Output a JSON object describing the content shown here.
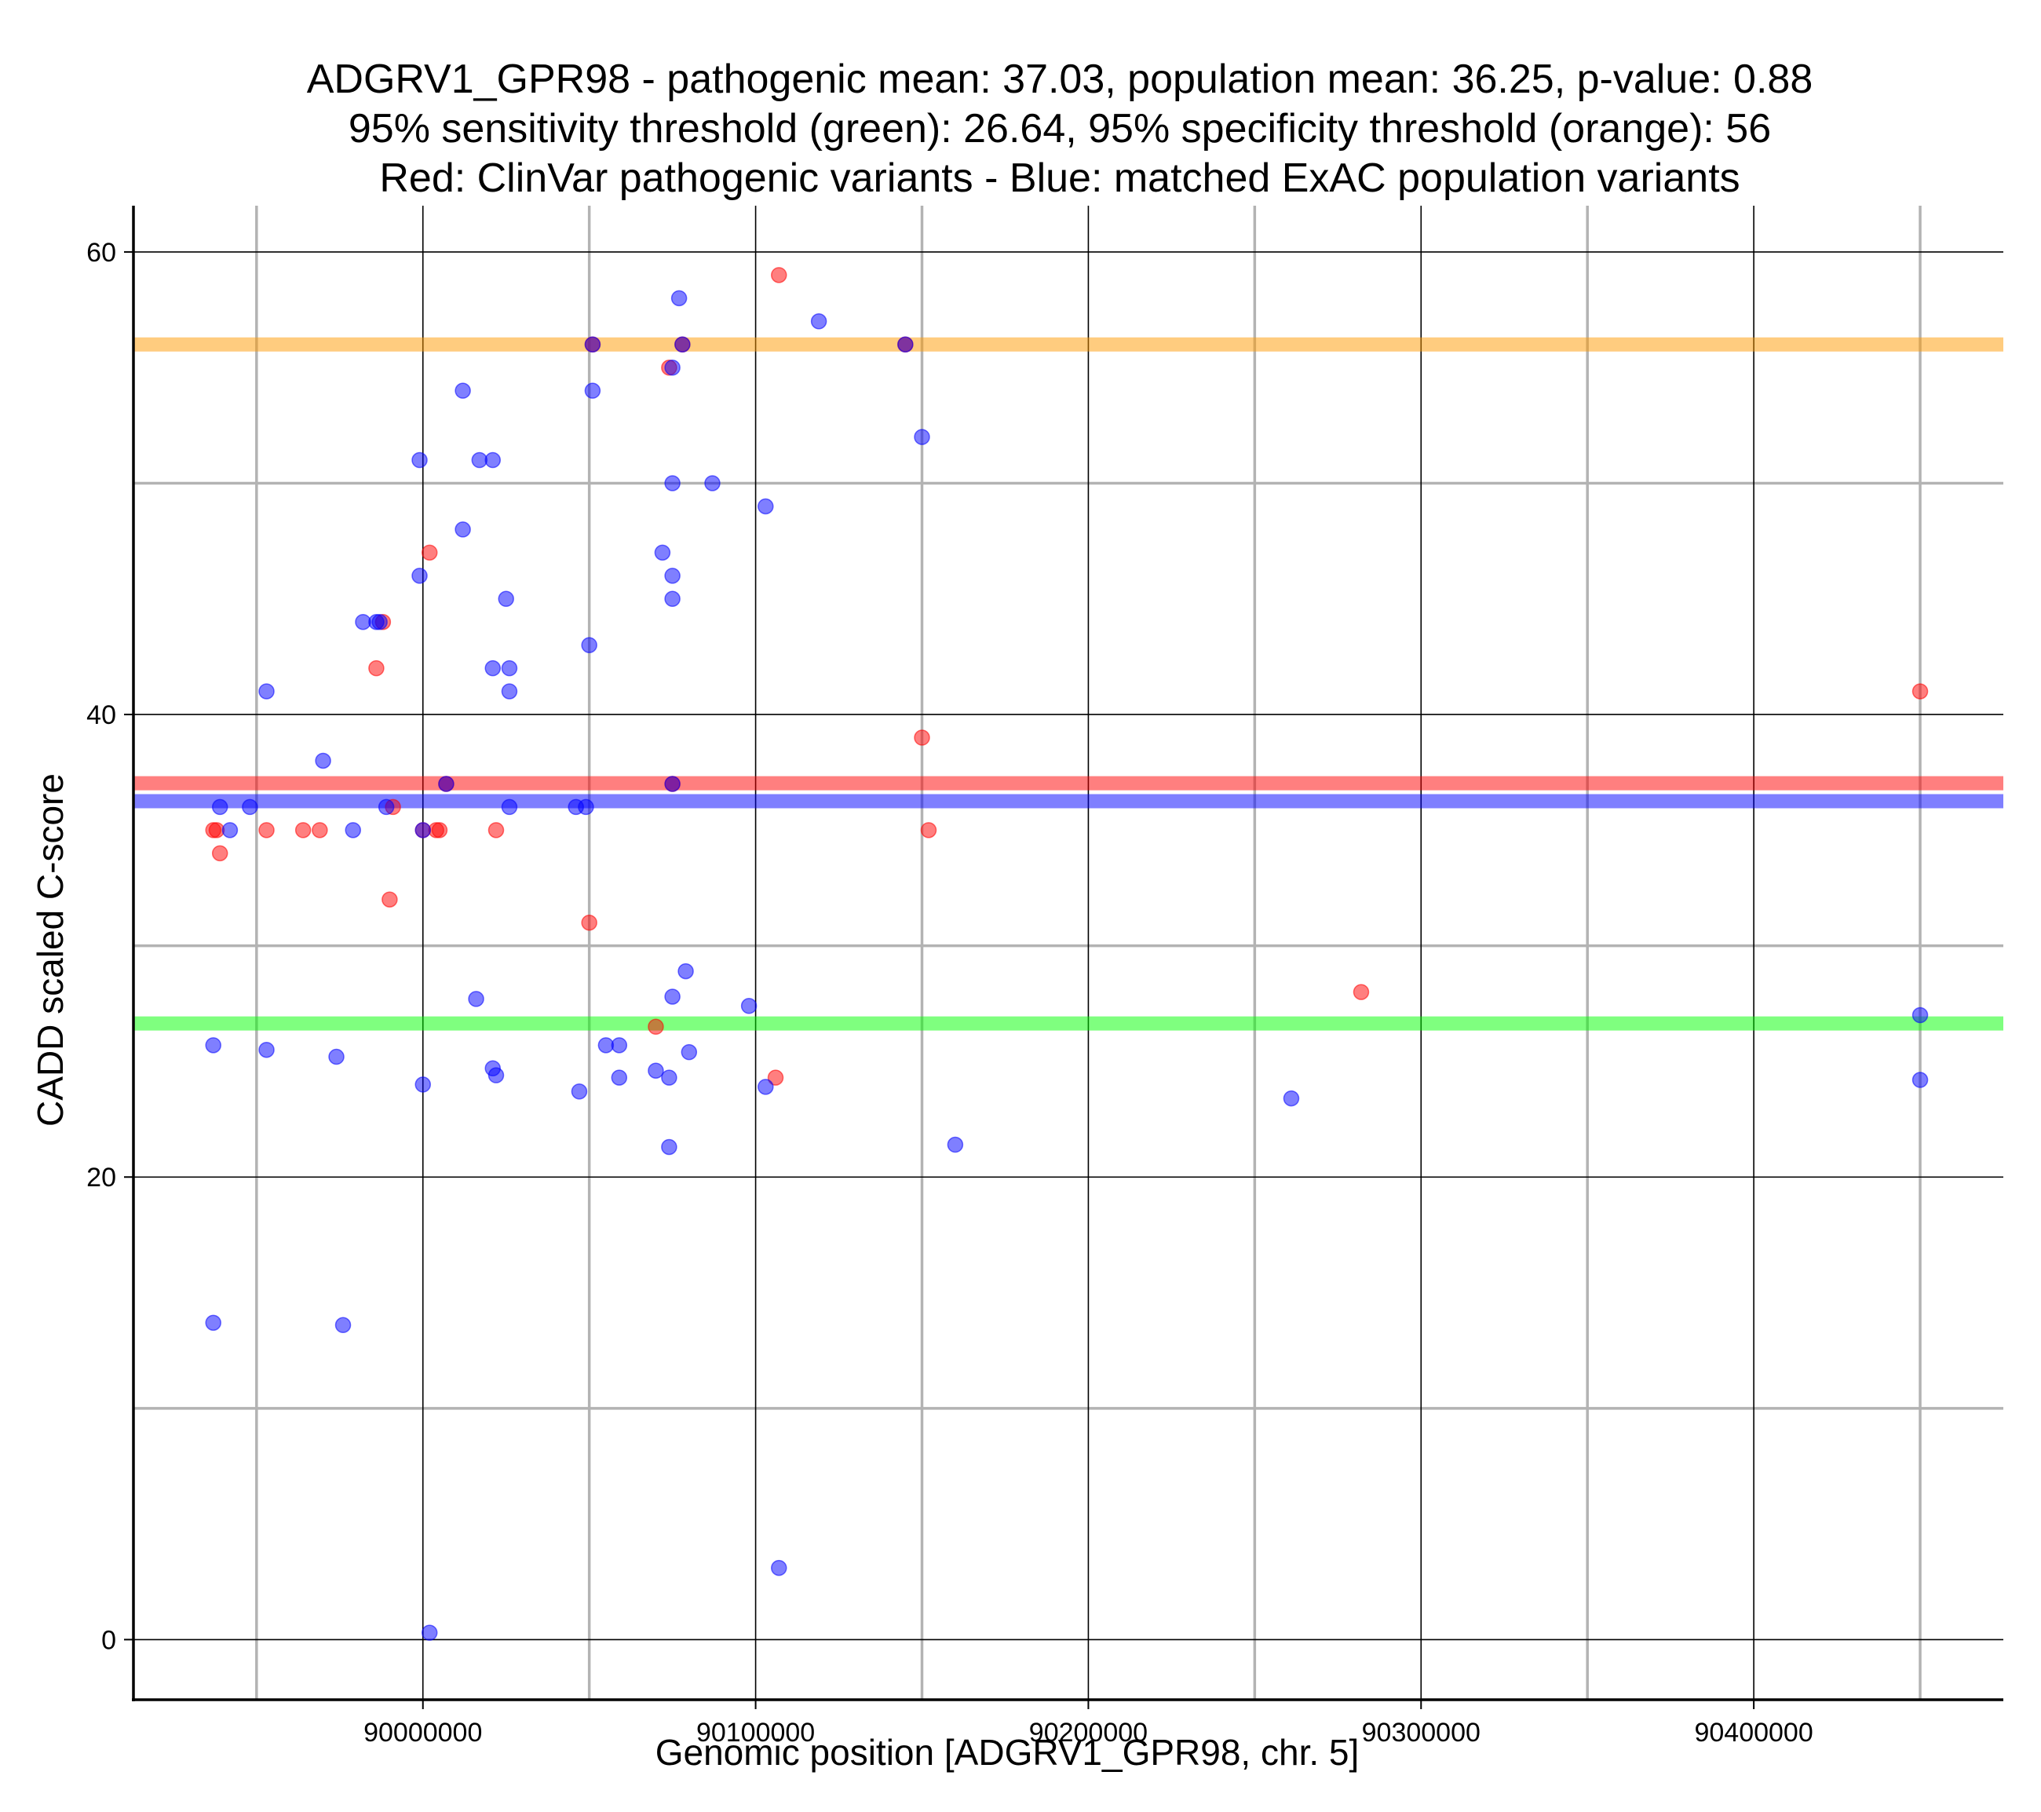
{
  "chart_data": {
    "type": "scatter",
    "title_lines": [
      "ADGRV1_GPR98 - pathogenic mean: 37.03, population mean: 36.25, p-value: 0.88",
      "95% sensitivity threshold (green): 26.64, 95% specificity threshold (orange): 56",
      "Red: ClinVar pathogenic variants - Blue: matched ExAC population variants"
    ],
    "xlabel": "Genomic position [ADGRV1_GPR98, chr. 5]",
    "ylabel": "CADD scaled C-score",
    "xlim": [
      89913000,
      90475000
    ],
    "ylim": [
      -2.6,
      62
    ],
    "x_ticks": [
      90000000,
      90100000,
      90200000,
      90300000,
      90400000
    ],
    "x_tick_labels": [
      "90000000",
      "90100000",
      "90200000",
      "90300000",
      "90400000"
    ],
    "x_minor_grid": [
      89950000,
      90050000,
      90150000,
      90250000,
      90350000,
      90450000
    ],
    "y_ticks": [
      0,
      20,
      40,
      60
    ],
    "y_tick_labels": [
      "0",
      "20",
      "40",
      "60"
    ],
    "y_minor_grid": [
      10,
      30,
      50
    ],
    "grid": true,
    "colors": {
      "pathogenic": "#ff0000",
      "population": "#0000ff",
      "sensitivity": "#00ff00",
      "specificity": "#ff9900",
      "major_grid": "#000000",
      "minor_grid": "#b3b3b3"
    },
    "hlines": [
      {
        "name": "specificity threshold (orange)",
        "y": 56,
        "color": "#ff9900"
      },
      {
        "name": "pathogenic mean (red)",
        "y": 37.03,
        "color": "#ff0000"
      },
      {
        "name": "population mean (blue)",
        "y": 36.25,
        "color": "#0000ff"
      },
      {
        "name": "sensitivity threshold (green)",
        "y": 26.64,
        "color": "#00ff00"
      }
    ],
    "series": [
      {
        "name": "ClinVar pathogenic variants",
        "color": "#ff0000",
        "points": [
          [
            89937000,
            35
          ],
          [
            89938000,
            35
          ],
          [
            89939000,
            34
          ],
          [
            89953000,
            35
          ],
          [
            89964000,
            35
          ],
          [
            89969000,
            35
          ],
          [
            89986000,
            42
          ],
          [
            89988000,
            44
          ],
          [
            89990000,
            32
          ],
          [
            89991000,
            36
          ],
          [
            90000000,
            35
          ],
          [
            90002000,
            47
          ],
          [
            90004000,
            35
          ],
          [
            90005000,
            35
          ],
          [
            90007000,
            37
          ],
          [
            90022000,
            35
          ],
          [
            90050000,
            31
          ],
          [
            90051000,
            56
          ],
          [
            90070000,
            26.5
          ],
          [
            90074000,
            55
          ],
          [
            90075000,
            37
          ],
          [
            90078000,
            56
          ],
          [
            90106000,
            24.3
          ],
          [
            90107000,
            59
          ],
          [
            90145000,
            56
          ],
          [
            90150000,
            39
          ],
          [
            90152000,
            35
          ],
          [
            90282000,
            28
          ],
          [
            90450000,
            41
          ]
        ]
      },
      {
        "name": "matched ExAC population variants",
        "color": "#0000ff",
        "points": [
          [
            89937000,
            25.7
          ],
          [
            89937000,
            13.7
          ],
          [
            89939000,
            36
          ],
          [
            89942000,
            35
          ],
          [
            89948000,
            36
          ],
          [
            89953000,
            41
          ],
          [
            89953000,
            25.5
          ],
          [
            89970000,
            38
          ],
          [
            89974000,
            25.2
          ],
          [
            89976000,
            13.6
          ],
          [
            89979000,
            35
          ],
          [
            89982000,
            44
          ],
          [
            89986000,
            44
          ],
          [
            89987000,
            44
          ],
          [
            89989000,
            36
          ],
          [
            89999000,
            51
          ],
          [
            89999000,
            46
          ],
          [
            90000000,
            35
          ],
          [
            90000000,
            24
          ],
          [
            90002000,
            0.3
          ],
          [
            90007000,
            37
          ],
          [
            90012000,
            54
          ],
          [
            90012000,
            48
          ],
          [
            90016000,
            27.7
          ],
          [
            90017000,
            51
          ],
          [
            90021000,
            51
          ],
          [
            90021000,
            42
          ],
          [
            90021000,
            24.7
          ],
          [
            90022000,
            24.4
          ],
          [
            90025000,
            45
          ],
          [
            90026000,
            42
          ],
          [
            90026000,
            41
          ],
          [
            90026000,
            36
          ],
          [
            90046000,
            36
          ],
          [
            90047000,
            23.7
          ],
          [
            90049000,
            36
          ],
          [
            90050000,
            43
          ],
          [
            90051000,
            54
          ],
          [
            90051000,
            56
          ],
          [
            90055000,
            25.7
          ],
          [
            90059000,
            25.7
          ],
          [
            90059000,
            24.3
          ],
          [
            90070000,
            24.6
          ],
          [
            90072000,
            47
          ],
          [
            90074000,
            24.3
          ],
          [
            90074000,
            21.3
          ],
          [
            90075000,
            50
          ],
          [
            90075000,
            46
          ],
          [
            90075000,
            45
          ],
          [
            90075000,
            27.8
          ],
          [
            90075000,
            55
          ],
          [
            90075000,
            37
          ],
          [
            90077000,
            58
          ],
          [
            90078000,
            56
          ],
          [
            90079000,
            28.9
          ],
          [
            90080000,
            25.4
          ],
          [
            90087000,
            50
          ],
          [
            90098000,
            27.4
          ],
          [
            90103000,
            49
          ],
          [
            90103000,
            23.9
          ],
          [
            90107000,
            3.1
          ],
          [
            90119000,
            57
          ],
          [
            90145000,
            56
          ],
          [
            90150000,
            52
          ],
          [
            90160000,
            21.4
          ],
          [
            90261000,
            23.4
          ],
          [
            90450000,
            27
          ],
          [
            90450000,
            24.2
          ]
        ]
      }
    ]
  }
}
